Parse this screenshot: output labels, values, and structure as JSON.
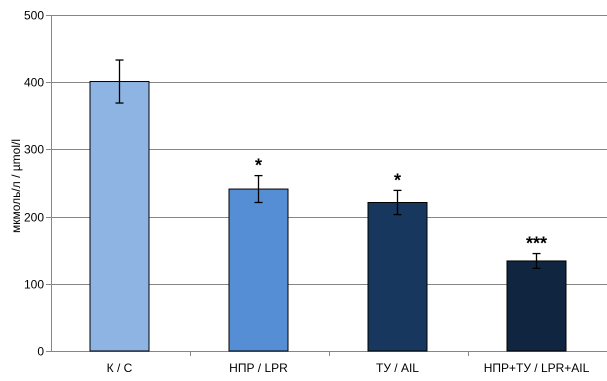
{
  "chart_data": {
    "type": "bar",
    "categories": [
      "К / С",
      "НПР / LPR",
      "ТУ / AIL",
      "НПР+ТУ / LPR+AIL"
    ],
    "values": [
      401,
      241,
      221,
      134
    ],
    "error": [
      32,
      20,
      18,
      11
    ],
    "significance": [
      "",
      "*",
      "*",
      "***"
    ],
    "colors": [
      "#8eb4e3",
      "#558ed5",
      "#17375e",
      "#10253f"
    ],
    "ylabel": "мкмоль/л / µmol/l",
    "ylim": [
      0,
      500
    ],
    "yticks": [
      0,
      100,
      200,
      300,
      400,
      500
    ],
    "grid": true,
    "legend": "none"
  }
}
